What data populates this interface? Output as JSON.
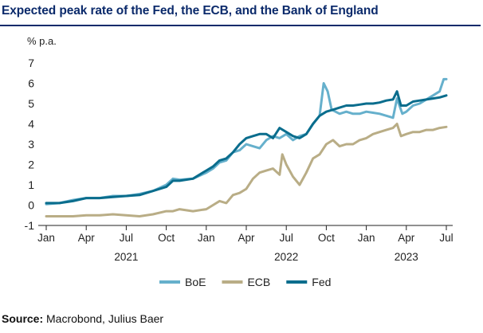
{
  "title": "Expected peak rate of the Fed, the ECB, and the Bank of England",
  "source": {
    "label": "Source:",
    "text": "Macrobond, Julius Baer"
  },
  "colors": {
    "title": "#0b2a6b",
    "boe": "#66b0cc",
    "ecb": "#b9ad86",
    "fed": "#0a6d8d",
    "axis": "#222222"
  },
  "chart_data": {
    "type": "line",
    "ylabel": "% p.a.",
    "ylim": [
      -1,
      7
    ],
    "yticks": [
      -1,
      0,
      1,
      2,
      3,
      4,
      5,
      6,
      7
    ],
    "xlim": [
      0,
      30
    ],
    "x_unit": "months since Jan 2021",
    "xticks": [
      {
        "x": 0,
        "label": "Jan"
      },
      {
        "x": 3,
        "label": "Apr"
      },
      {
        "x": 6,
        "label": "Jul"
      },
      {
        "x": 9,
        "label": "Oct"
      },
      {
        "x": 12,
        "label": "Jan"
      },
      {
        "x": 15,
        "label": "Apr"
      },
      {
        "x": 18,
        "label": "Jul"
      },
      {
        "x": 21,
        "label": "Oct"
      },
      {
        "x": 24,
        "label": "Jan"
      },
      {
        "x": 27,
        "label": "Apr"
      },
      {
        "x": 30,
        "label": "Jul"
      }
    ],
    "year_labels": [
      {
        "x": 6,
        "label": "2021"
      },
      {
        "x": 18,
        "label": "2022"
      },
      {
        "x": 27,
        "label": "2023"
      }
    ],
    "legend": [
      "BoE",
      "ECB",
      "Fed"
    ],
    "series": [
      {
        "name": "BoE",
        "color": "#66b0cc",
        "points": [
          [
            0,
            0.05
          ],
          [
            1,
            0.1
          ],
          [
            2,
            0.25
          ],
          [
            3,
            0.35
          ],
          [
            4,
            0.35
          ],
          [
            5,
            0.45
          ],
          [
            6,
            0.45
          ],
          [
            7,
            0.55
          ],
          [
            8,
            0.7
          ],
          [
            9,
            1.0
          ],
          [
            9.5,
            1.3
          ],
          [
            10,
            1.25
          ],
          [
            11,
            1.3
          ],
          [
            12,
            1.6
          ],
          [
            12.5,
            1.8
          ],
          [
            13,
            2.1
          ],
          [
            13.5,
            2.2
          ],
          [
            14,
            2.6
          ],
          [
            14.5,
            2.7
          ],
          [
            15,
            3.0
          ],
          [
            15.5,
            2.9
          ],
          [
            16,
            2.8
          ],
          [
            16.5,
            3.2
          ],
          [
            17,
            3.4
          ],
          [
            17.5,
            3.3
          ],
          [
            18,
            3.5
          ],
          [
            18.5,
            3.2
          ],
          [
            19,
            3.4
          ],
          [
            19.5,
            3.5
          ],
          [
            20,
            4.0
          ],
          [
            20.5,
            4.4
          ],
          [
            20.8,
            6.0
          ],
          [
            21.1,
            5.6
          ],
          [
            21.4,
            4.7
          ],
          [
            22,
            4.5
          ],
          [
            22.5,
            4.6
          ],
          [
            23,
            4.5
          ],
          [
            23.5,
            4.5
          ],
          [
            24,
            4.6
          ],
          [
            24.5,
            4.55
          ],
          [
            25,
            4.5
          ],
          [
            25.5,
            4.4
          ],
          [
            26,
            4.3
          ],
          [
            26.3,
            5.25
          ],
          [
            26.7,
            4.5
          ],
          [
            27,
            4.6
          ],
          [
            27.5,
            4.9
          ],
          [
            28,
            5.0
          ],
          [
            28.5,
            5.2
          ],
          [
            29,
            5.4
          ],
          [
            29.5,
            5.6
          ],
          [
            29.8,
            6.2
          ],
          [
            30,
            6.2
          ]
        ]
      },
      {
        "name": "ECB",
        "color": "#b9ad86",
        "points": [
          [
            0,
            -0.55
          ],
          [
            1,
            -0.55
          ],
          [
            2,
            -0.55
          ],
          [
            3,
            -0.5
          ],
          [
            4,
            -0.5
          ],
          [
            5,
            -0.45
          ],
          [
            6,
            -0.5
          ],
          [
            7,
            -0.55
          ],
          [
            8,
            -0.45
          ],
          [
            9,
            -0.3
          ],
          [
            9.5,
            -0.3
          ],
          [
            10,
            -0.2
          ],
          [
            11,
            -0.3
          ],
          [
            12,
            -0.2
          ],
          [
            12.5,
            0.0
          ],
          [
            13,
            0.2
          ],
          [
            13.5,
            0.1
          ],
          [
            14,
            0.5
          ],
          [
            14.5,
            0.6
          ],
          [
            15,
            0.8
          ],
          [
            15.5,
            1.3
          ],
          [
            16,
            1.6
          ],
          [
            16.5,
            1.7
          ],
          [
            17,
            1.8
          ],
          [
            17.5,
            1.5
          ],
          [
            17.7,
            2.5
          ],
          [
            18,
            2.0
          ],
          [
            18.5,
            1.4
          ],
          [
            19,
            1.0
          ],
          [
            19.5,
            1.6
          ],
          [
            20,
            2.3
          ],
          [
            20.5,
            2.5
          ],
          [
            21,
            3.0
          ],
          [
            21.5,
            3.2
          ],
          [
            22,
            2.9
          ],
          [
            22.5,
            3.0
          ],
          [
            23,
            3.0
          ],
          [
            23.5,
            3.2
          ],
          [
            24,
            3.3
          ],
          [
            24.5,
            3.5
          ],
          [
            25,
            3.6
          ],
          [
            25.5,
            3.7
          ],
          [
            26,
            3.8
          ],
          [
            26.3,
            4.0
          ],
          [
            26.6,
            3.4
          ],
          [
            27,
            3.5
          ],
          [
            27.5,
            3.6
          ],
          [
            28,
            3.6
          ],
          [
            28.5,
            3.7
          ],
          [
            29,
            3.7
          ],
          [
            29.5,
            3.8
          ],
          [
            30,
            3.85
          ]
        ]
      },
      {
        "name": "Fed",
        "color": "#0a6d8d",
        "points": [
          [
            0,
            0.1
          ],
          [
            1,
            0.1
          ],
          [
            2,
            0.2
          ],
          [
            3,
            0.35
          ],
          [
            4,
            0.35
          ],
          [
            5,
            0.4
          ],
          [
            6,
            0.45
          ],
          [
            7,
            0.5
          ],
          [
            8,
            0.7
          ],
          [
            9,
            0.9
          ],
          [
            9.5,
            1.2
          ],
          [
            10,
            1.2
          ],
          [
            11,
            1.3
          ],
          [
            12,
            1.7
          ],
          [
            12.5,
            1.9
          ],
          [
            13,
            2.2
          ],
          [
            13.5,
            2.3
          ],
          [
            14,
            2.6
          ],
          [
            14.5,
            3.0
          ],
          [
            15,
            3.3
          ],
          [
            15.5,
            3.4
          ],
          [
            16,
            3.5
          ],
          [
            16.5,
            3.5
          ],
          [
            17,
            3.3
          ],
          [
            17.5,
            3.8
          ],
          [
            18,
            3.6
          ],
          [
            18.5,
            3.4
          ],
          [
            19,
            3.3
          ],
          [
            19.5,
            3.5
          ],
          [
            20,
            4.0
          ],
          [
            20.5,
            4.4
          ],
          [
            21,
            4.6
          ],
          [
            21.5,
            4.7
          ],
          [
            22,
            4.8
          ],
          [
            22.5,
            4.9
          ],
          [
            23,
            4.9
          ],
          [
            23.5,
            4.95
          ],
          [
            24,
            5.0
          ],
          [
            24.5,
            5.0
          ],
          [
            25,
            5.05
          ],
          [
            25.5,
            5.15
          ],
          [
            26,
            5.2
          ],
          [
            26.3,
            5.6
          ],
          [
            26.6,
            4.9
          ],
          [
            27,
            4.9
          ],
          [
            27.5,
            5.1
          ],
          [
            28,
            5.15
          ],
          [
            28.5,
            5.2
          ],
          [
            29,
            5.25
          ],
          [
            29.5,
            5.3
          ],
          [
            30,
            5.4
          ]
        ]
      }
    ]
  }
}
